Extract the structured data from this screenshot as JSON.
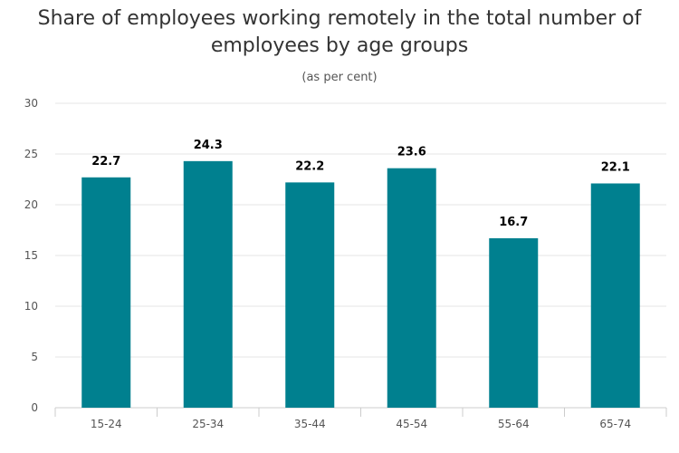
{
  "chart_data": {
    "type": "bar",
    "title": "Share of employees working remotely in the total number of employees by age groups",
    "subtitle": "(as per cent)",
    "categories": [
      "15-24",
      "25-34",
      "35-44",
      "45-54",
      "55-64",
      "65-74"
    ],
    "values": [
      22.7,
      24.3,
      22.2,
      23.6,
      16.7,
      22.1
    ],
    "data_labels": [
      "22.7",
      "24.3",
      "22.2",
      "23.6",
      "16.7",
      "22.1"
    ],
    "y_ticks": [
      "0",
      "5",
      "10",
      "15",
      "20",
      "25",
      "30"
    ],
    "ylim": [
      0,
      30
    ],
    "xlabel": "",
    "ylabel": "",
    "grid": true,
    "legend": "none",
    "colors": {
      "bar": "#00808f",
      "grid": "#e6e6e6",
      "axis": "#cccccc"
    }
  }
}
